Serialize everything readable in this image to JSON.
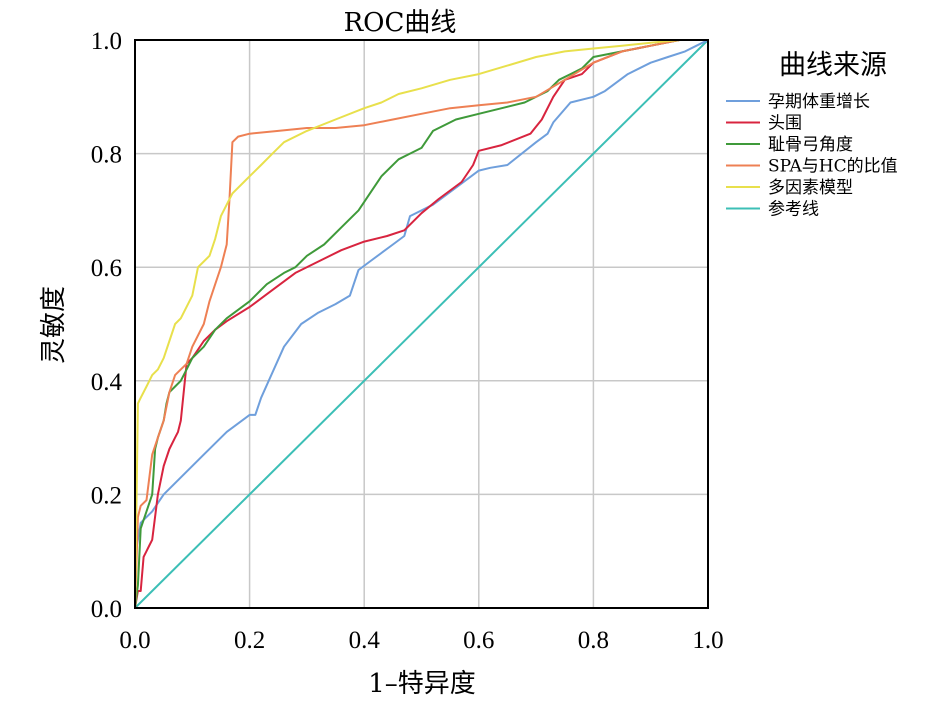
{
  "chart_data": {
    "type": "line",
    "title": "ROC曲线",
    "xlabel": "1–特异度",
    "ylabel": "灵敏度",
    "xlim": [
      0,
      1
    ],
    "ylim": [
      0,
      1
    ],
    "xticks": [
      "0.0",
      "0.2",
      "0.4",
      "0.6",
      "0.8",
      "1.0"
    ],
    "yticks": [
      "0.0",
      "0.2",
      "0.4",
      "0.6",
      "0.8",
      "1.0"
    ],
    "grid": true,
    "legend": {
      "title": "曲线来源",
      "placement": "right"
    },
    "series": [
      {
        "name": "孕期体重增长",
        "color": "#6f9fdc",
        "x": [
          0,
          0,
          0.01,
          0.03,
          0.05,
          0.08,
          0.12,
          0.16,
          0.2,
          0.21,
          0.22,
          0.26,
          0.29,
          0.32,
          0.35,
          0.375,
          0.39,
          0.41,
          0.45,
          0.47,
          0.48,
          0.52,
          0.56,
          0.6,
          0.62,
          0.65,
          0.7,
          0.72,
          0.73,
          0.76,
          0.8,
          0.82,
          0.86,
          0.9,
          0.93,
          0.96,
          0.98,
          1.0
        ],
        "y": [
          0,
          0.09,
          0.15,
          0.17,
          0.2,
          0.23,
          0.27,
          0.31,
          0.34,
          0.34,
          0.37,
          0.46,
          0.5,
          0.52,
          0.535,
          0.55,
          0.595,
          0.61,
          0.64,
          0.655,
          0.69,
          0.71,
          0.74,
          0.77,
          0.775,
          0.78,
          0.82,
          0.835,
          0.855,
          0.89,
          0.9,
          0.91,
          0.94,
          0.96,
          0.97,
          0.98,
          0.99,
          1.0
        ]
      },
      {
        "name": "头围",
        "color": "#d8243f",
        "x": [
          0,
          0.005,
          0.01,
          0.015,
          0.02,
          0.025,
          0.03,
          0.04,
          0.05,
          0.06,
          0.07,
          0.075,
          0.08,
          0.09,
          0.1,
          0.12,
          0.14,
          0.16,
          0.2,
          0.24,
          0.28,
          0.32,
          0.36,
          0.4,
          0.44,
          0.47,
          0.5,
          0.53,
          0.57,
          0.59,
          0.6,
          0.64,
          0.69,
          0.71,
          0.73,
          0.75,
          0.78,
          0.8,
          0.85,
          0.9,
          0.95,
          1.0
        ],
        "y": [
          0,
          0.03,
          0.03,
          0.09,
          0.1,
          0.11,
          0.12,
          0.2,
          0.25,
          0.28,
          0.3,
          0.31,
          0.33,
          0.43,
          0.44,
          0.47,
          0.49,
          0.505,
          0.53,
          0.56,
          0.59,
          0.61,
          0.63,
          0.645,
          0.655,
          0.665,
          0.695,
          0.72,
          0.75,
          0.78,
          0.805,
          0.815,
          0.835,
          0.86,
          0.9,
          0.93,
          0.94,
          0.96,
          0.98,
          0.99,
          1.0,
          1.0
        ]
      },
      {
        "name": "耻骨弓角度",
        "color": "#3f9a3a",
        "x": [
          0,
          0.005,
          0.01,
          0.02,
          0.03,
          0.035,
          0.04,
          0.05,
          0.055,
          0.06,
          0.07,
          0.08,
          0.09,
          0.1,
          0.12,
          0.14,
          0.16,
          0.2,
          0.23,
          0.26,
          0.28,
          0.3,
          0.33,
          0.36,
          0.39,
          0.41,
          0.43,
          0.46,
          0.48,
          0.5,
          0.52,
          0.56,
          0.6,
          0.64,
          0.68,
          0.72,
          0.74,
          0.76,
          0.78,
          0.8,
          0.85,
          0.9,
          0.95,
          1.0
        ],
        "y": [
          0,
          0.04,
          0.14,
          0.17,
          0.2,
          0.28,
          0.3,
          0.33,
          0.36,
          0.38,
          0.39,
          0.4,
          0.42,
          0.44,
          0.46,
          0.49,
          0.51,
          0.54,
          0.57,
          0.59,
          0.6,
          0.62,
          0.64,
          0.67,
          0.7,
          0.73,
          0.76,
          0.79,
          0.8,
          0.81,
          0.84,
          0.86,
          0.87,
          0.88,
          0.89,
          0.91,
          0.93,
          0.94,
          0.95,
          0.97,
          0.98,
          0.99,
          1.0,
          1.0
        ]
      },
      {
        "name": "SPA与HC的比值",
        "color": "#ee8054",
        "x": [
          0,
          0.005,
          0.01,
          0.02,
          0.03,
          0.04,
          0.05,
          0.06,
          0.07,
          0.08,
          0.09,
          0.1,
          0.12,
          0.13,
          0.14,
          0.15,
          0.16,
          0.165,
          0.17,
          0.18,
          0.2,
          0.25,
          0.3,
          0.35,
          0.4,
          0.45,
          0.5,
          0.55,
          0.6,
          0.65,
          0.7,
          0.75,
          0.8,
          0.85,
          0.9,
          0.95,
          1.0
        ],
        "y": [
          0,
          0.16,
          0.18,
          0.19,
          0.27,
          0.3,
          0.33,
          0.38,
          0.41,
          0.42,
          0.43,
          0.46,
          0.5,
          0.54,
          0.57,
          0.6,
          0.64,
          0.72,
          0.82,
          0.83,
          0.835,
          0.84,
          0.845,
          0.845,
          0.85,
          0.86,
          0.87,
          0.88,
          0.885,
          0.89,
          0.9,
          0.93,
          0.96,
          0.98,
          0.99,
          1.0,
          1.0
        ]
      },
      {
        "name": "多因素模型",
        "color": "#e8e04c",
        "x": [
          0,
          0.005,
          0.01,
          0.02,
          0.03,
          0.04,
          0.05,
          0.06,
          0.07,
          0.08,
          0.1,
          0.11,
          0.12,
          0.13,
          0.14,
          0.15,
          0.17,
          0.19,
          0.2,
          0.22,
          0.24,
          0.26,
          0.3,
          0.35,
          0.4,
          0.43,
          0.46,
          0.5,
          0.55,
          0.6,
          0.65,
          0.7,
          0.75,
          0.8,
          0.85,
          0.9,
          0.95,
          1.0
        ],
        "y": [
          0,
          0.36,
          0.37,
          0.39,
          0.41,
          0.42,
          0.44,
          0.47,
          0.5,
          0.51,
          0.55,
          0.6,
          0.61,
          0.62,
          0.65,
          0.69,
          0.73,
          0.75,
          0.76,
          0.78,
          0.8,
          0.82,
          0.84,
          0.86,
          0.88,
          0.89,
          0.905,
          0.915,
          0.93,
          0.94,
          0.955,
          0.97,
          0.98,
          0.985,
          0.99,
          0.995,
          1.0,
          1.0
        ]
      },
      {
        "name": "参考线",
        "color": "#3cbfb6",
        "x": [
          0,
          1
        ],
        "y": [
          0,
          1
        ]
      }
    ]
  }
}
